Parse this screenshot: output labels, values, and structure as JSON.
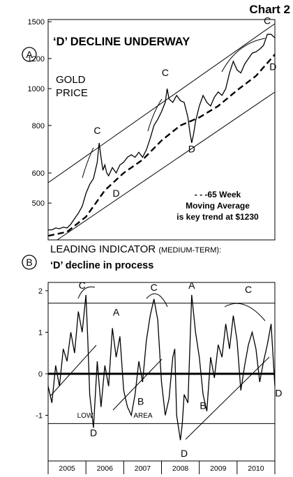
{
  "page_label": "Chart 2",
  "chart_data": [
    {
      "panel": "A",
      "type": "line",
      "title": "‘D’ DECLINE UNDERWAY",
      "ylabel_lines": [
        "GOLD",
        "PRICE"
      ],
      "y_scale": "log",
      "y_ticks": [
        500,
        600,
        800,
        1000,
        1200,
        1500
      ],
      "ylim": [
        400,
        1520
      ],
      "xlim": [
        2005.0,
        2011.0
      ],
      "series": [
        {
          "name": "",
          "style": "solid",
          "x": [
            2005.0,
            2005.1,
            2005.2,
            2005.3,
            2005.4,
            2005.5,
            2005.6,
            2005.7,
            2005.8,
            2005.9,
            2006.0,
            2006.1,
            2006.2,
            2006.3,
            2006.35,
            2006.4,
            2006.45,
            2006.5,
            2006.55,
            2006.6,
            2006.7,
            2006.8,
            2006.9,
            2007.0,
            2007.1,
            2007.2,
            2007.3,
            2007.4,
            2007.5,
            2007.6,
            2007.7,
            2007.8,
            2007.9,
            2008.0,
            2008.1,
            2008.15,
            2008.2,
            2008.3,
            2008.4,
            2008.5,
            2008.6,
            2008.7,
            2008.75,
            2008.8,
            2008.85,
            2008.9,
            2009.0,
            2009.1,
            2009.2,
            2009.3,
            2009.4,
            2009.5,
            2009.6,
            2009.7,
            2009.8,
            2009.9,
            2010.0,
            2010.1,
            2010.2,
            2010.3,
            2010.4,
            2010.5,
            2010.6,
            2010.7,
            2010.8,
            2010.9,
            2011.0
          ],
          "y": [
            425,
            425,
            430,
            428,
            432,
            430,
            440,
            455,
            470,
            490,
            530,
            560,
            580,
            640,
            720,
            660,
            610,
            630,
            600,
            590,
            620,
            600,
            630,
            640,
            660,
            670,
            660,
            680,
            660,
            690,
            740,
            800,
            830,
            870,
            920,
            1000,
            940,
            920,
            960,
            930,
            920,
            840,
            770,
            720,
            760,
            820,
            900,
            960,
            920,
            900,
            950,
            980,
            960,
            1000,
            1100,
            1180,
            1120,
            1100,
            1160,
            1200,
            1240,
            1250,
            1270,
            1300,
            1390,
            1390,
            1360
          ]
        },
        {
          "name": "---65 Week",
          "style": "dashed",
          "x": [
            2005.0,
            2005.5,
            2006.0,
            2006.5,
            2007.0,
            2007.5,
            2008.0,
            2008.5,
            2009.0,
            2009.5,
            2010.0,
            2010.5,
            2011.0
          ],
          "y": [
            410,
            420,
            460,
            540,
            600,
            650,
            730,
            800,
            840,
            900,
            990,
            1080,
            1230
          ]
        }
      ],
      "annotations": [
        {
          "text": "C",
          "x": 2006.3,
          "y": 760
        },
        {
          "text": "C",
          "x": 2008.1,
          "y": 1080
        },
        {
          "text": "C",
          "x": 2010.8,
          "y": 1480
        },
        {
          "text": "D",
          "x": 2006.8,
          "y": 520
        },
        {
          "text": "D",
          "x": 2008.8,
          "y": 680
        },
        {
          "text": "D",
          "x": 2010.95,
          "y": 1120
        }
      ],
      "note_lines": [
        "- - -65 Week",
        "Moving Average",
        "is key trend at $1230"
      ]
    },
    {
      "panel": "B",
      "type": "line",
      "title": "LEADING INDICATOR",
      "title_suffix": "(MEDIUM-TERM):",
      "subtitle": "‘D’ decline in process",
      "y_ticks": [
        -1,
        0,
        1,
        2
      ],
      "ylim": [
        -2.1,
        2.2
      ],
      "xlim": [
        2005.0,
        2011.0
      ],
      "x_tick_labels": [
        "2005",
        "2006",
        "2007",
        "2008",
        "2009",
        "2010"
      ],
      "reference_lines": [
        1.7,
        0,
        -1.2
      ],
      "series": [
        {
          "name": "",
          "x": [
            2005.0,
            2005.1,
            2005.2,
            2005.3,
            2005.4,
            2005.5,
            2005.6,
            2005.7,
            2005.8,
            2005.9,
            2006.0,
            2006.05,
            2006.1,
            2006.2,
            2006.3,
            2006.4,
            2006.5,
            2006.6,
            2006.7,
            2006.8,
            2006.9,
            2007.0,
            2007.1,
            2007.2,
            2007.3,
            2007.4,
            2007.5,
            2007.6,
            2007.7,
            2007.8,
            2007.9,
            2008.0,
            2008.1,
            2008.2,
            2008.3,
            2008.35,
            2008.4,
            2008.5,
            2008.55,
            2008.6,
            2008.7,
            2008.8,
            2008.9,
            2009.0,
            2009.1,
            2009.2,
            2009.3,
            2009.4,
            2009.5,
            2009.6,
            2009.7,
            2009.8,
            2009.9,
            2010.0,
            2010.1,
            2010.2,
            2010.3,
            2010.4,
            2010.5,
            2010.6,
            2010.7,
            2010.8,
            2010.9,
            2011.0
          ],
          "y": [
            -0.3,
            -0.7,
            0.2,
            -0.3,
            0.6,
            0.3,
            1.0,
            0.5,
            1.5,
            1.0,
            1.9,
            0.8,
            -0.5,
            -1.3,
            0.3,
            -0.8,
            0.2,
            -0.3,
            1.1,
            0.4,
            0.9,
            -0.4,
            -0.8,
            -1.0,
            -0.5,
            0.3,
            -0.2,
            0.8,
            1.4,
            1.8,
            1.3,
            -0.2,
            -1.0,
            -0.6,
            0.4,
            0.6,
            -1.0,
            -1.6,
            -1.2,
            -0.5,
            -0.7,
            1.9,
            1.0,
            0.4,
            -0.5,
            -0.9,
            0.4,
            -0.1,
            0.7,
            0.4,
            1.2,
            0.6,
            1.4,
            0.8,
            -0.4,
            0.2,
            0.7,
            1.0,
            0.6,
            -0.2,
            0.3,
            0.7,
            1.2,
            -0.3
          ]
        }
      ],
      "annotations": [
        {
          "text": "C",
          "x": 2005.9,
          "y": 2.05
        },
        {
          "text": "A",
          "x": 2006.8,
          "y": 1.4
        },
        {
          "text": "B",
          "x": 2007.45,
          "y": -0.75
        },
        {
          "text": "C",
          "x": 2007.8,
          "y": 2.0
        },
        {
          "text": "A",
          "x": 2008.8,
          "y": 2.05
        },
        {
          "text": "B",
          "x": 2009.1,
          "y": -0.85
        },
        {
          "text": "C",
          "x": 2010.3,
          "y": 1.95
        },
        {
          "text": "D",
          "x": 2006.2,
          "y": -1.5
        },
        {
          "text": "D",
          "x": 2008.6,
          "y": -2.0
        },
        {
          "text": "D",
          "x": 2011.1,
          "y": -0.55
        }
      ],
      "zone_labels": [
        "LOW",
        "AREA"
      ]
    }
  ]
}
